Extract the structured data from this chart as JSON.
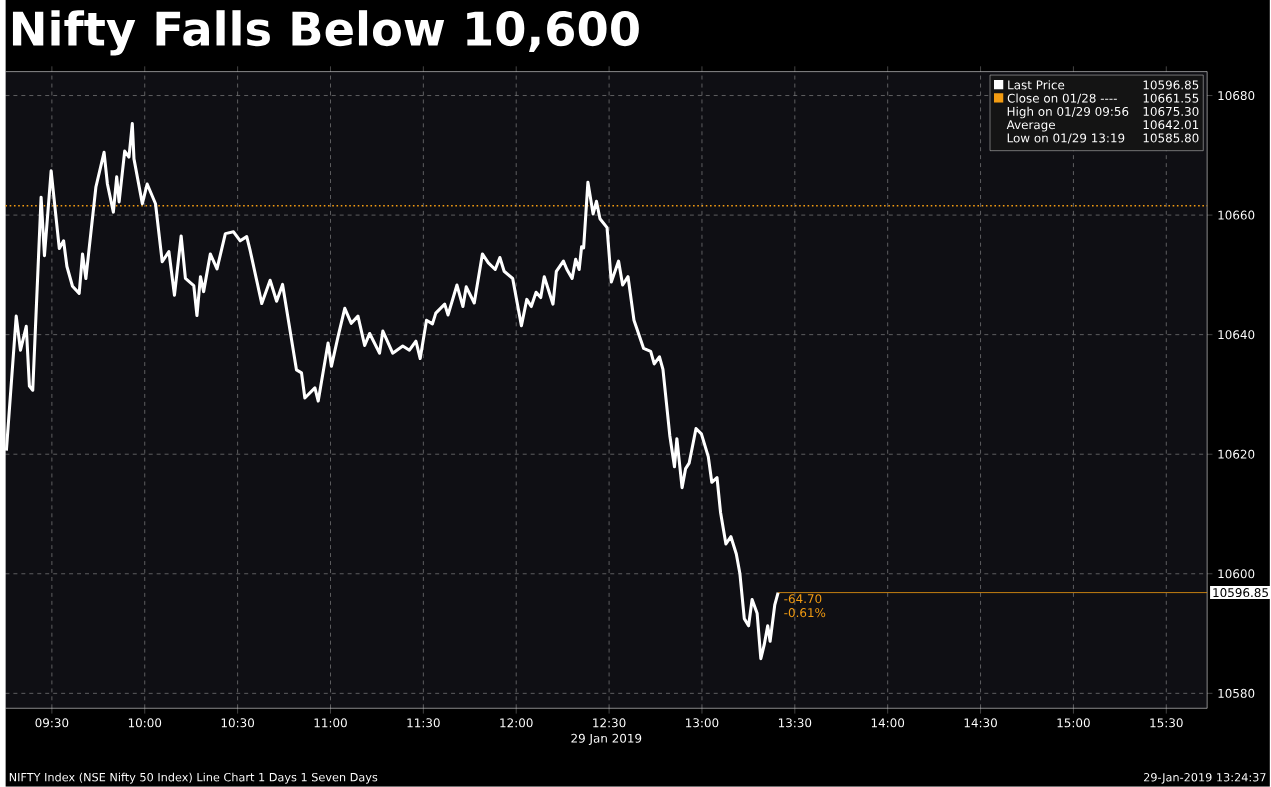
{
  "chart_data": {
    "type": "line",
    "title": "Nifty Falls Below 10,600",
    "xlabel": "29 Jan 2019",
    "x": [
      9.255,
      9.308,
      9.331,
      9.362,
      9.379,
      9.397,
      9.442,
      9.46,
      9.496,
      9.54,
      9.563,
      9.581,
      9.611,
      9.647,
      9.665,
      9.683,
      9.737,
      9.781,
      9.799,
      9.831,
      9.849,
      9.862,
      9.892,
      9.915,
      9.933,
      9.942,
      9.987,
      10.013,
      10.058,
      10.094,
      10.13,
      10.16,
      10.196,
      10.219,
      10.264,
      10.281,
      10.3,
      10.317,
      10.353,
      10.389,
      10.434,
      10.478,
      10.514,
      10.549,
      10.568,
      10.63,
      10.675,
      10.71,
      10.742,
      10.817,
      10.844,
      10.862,
      10.916,
      10.934,
      10.987,
      11.005,
      11.041,
      11.077,
      11.112,
      11.148,
      11.184,
      11.211,
      11.264,
      11.282,
      11.335,
      11.389,
      11.425,
      11.46,
      11.483,
      11.517,
      11.549,
      11.567,
      11.615,
      11.633,
      11.681,
      11.713,
      11.731,
      11.774,
      11.818,
      11.85,
      11.887,
      11.912,
      11.935,
      11.981,
      12.028,
      12.057,
      12.081,
      12.107,
      12.132,
      12.151,
      12.198,
      12.216,
      12.254,
      12.273,
      12.301,
      12.32,
      12.339,
      12.352,
      12.363,
      12.386,
      12.414,
      12.432,
      12.451,
      12.489,
      12.512,
      12.551,
      12.573,
      12.602,
      12.634,
      12.686,
      12.724,
      12.743,
      12.771,
      12.79,
      12.827,
      12.852,
      12.865,
      12.893,
      12.912,
      12.931,
      12.968,
      12.997,
      13.034,
      13.053,
      13.081,
      13.1,
      13.129,
      13.156,
      13.185,
      13.204,
      13.228,
      13.251,
      13.27,
      13.297,
      13.317,
      13.335,
      13.354,
      13.367,
      13.392,
      13.41
    ],
    "series": [
      {
        "name": "Last Price",
        "color": "#ffffff",
        "values": [
          10620.6,
          10643.1,
          10637.4,
          10641.4,
          10631.4,
          10630.7,
          10663.0,
          10653.2,
          10667.4,
          10654.4,
          10655.7,
          10651.4,
          10648.1,
          10646.9,
          10653.5,
          10649.4,
          10664.7,
          10670.5,
          10665.2,
          10660.5,
          10666.4,
          10662.2,
          10670.7,
          10669.7,
          10675.3,
          10669.4,
          10661.9,
          10665.2,
          10661.9,
          10652.2,
          10653.9,
          10646.6,
          10656.5,
          10649.4,
          10648.2,
          10643.2,
          10649.7,
          10647.2,
          10653.5,
          10651.0,
          10656.9,
          10657.2,
          10655.7,
          10656.4,
          10654.0,
          10645.2,
          10649.1,
          10645.6,
          10648.4,
          10634.1,
          10633.6,
          10629.4,
          10631.1,
          10628.9,
          10638.6,
          10634.7,
          10639.7,
          10644.4,
          10641.9,
          10643.1,
          10638.2,
          10640.2,
          10636.9,
          10640.6,
          10636.9,
          10638.1,
          10637.4,
          10638.9,
          10636.0,
          10642.4,
          10641.8,
          10643.6,
          10645.1,
          10643.3,
          10648.3,
          10644.7,
          10648.0,
          10645.3,
          10653.5,
          10652.0,
          10650.9,
          10652.9,
          10650.6,
          10649.4,
          10641.5,
          10645.9,
          10644.7,
          10647.1,
          10646.2,
          10649.7,
          10645.1,
          10650.6,
          10652.3,
          10650.9,
          10649.4,
          10652.6,
          10650.9,
          10654.7,
          10654.5,
          10665.5,
          10660.2,
          10662.3,
          10659.4,
          10657.9,
          10648.8,
          10652.3,
          10648.3,
          10649.7,
          10642.4,
          10637.7,
          10637.2,
          10635.1,
          10636.3,
          10634.2,
          10623.1,
          10617.9,
          10622.6,
          10614.4,
          10617.6,
          10618.5,
          10624.3,
          10623.4,
          10619.6,
          10615.3,
          10616.1,
          10610.3,
          10605.0,
          10606.2,
          10603.3,
          10600.1,
          10592.5,
          10591.3,
          10595.7,
          10593.4,
          10585.8,
          10588.1,
          10591.3,
          10588.7,
          10594.8,
          10596.85
        ]
      }
    ],
    "xlim": [
      9.25,
      15.72
    ],
    "ylim": [
      10577.5,
      10684
    ],
    "xticks": [
      {
        "value": 9.5,
        "label": "09:30"
      },
      {
        "value": 10,
        "label": "10:00"
      },
      {
        "value": 10.5,
        "label": "10:30"
      },
      {
        "value": 11,
        "label": "11:00"
      },
      {
        "value": 11.5,
        "label": "11:30"
      },
      {
        "value": 12,
        "label": "12:00"
      },
      {
        "value": 12.5,
        "label": "12:30"
      },
      {
        "value": 13,
        "label": "13:00"
      },
      {
        "value": 13.5,
        "label": "13:30"
      },
      {
        "value": 14,
        "label": "14:00"
      },
      {
        "value": 14.5,
        "label": "14:30"
      },
      {
        "value": 15,
        "label": "15:00"
      },
      {
        "value": 15.5,
        "label": "15:30"
      }
    ],
    "yticks": [
      10580,
      10600,
      10620,
      10640,
      10660,
      10680
    ],
    "ref_lines": [
      {
        "axis": "y",
        "value": 10661.55,
        "label": "Close on 01/28 ----",
        "color": "#f39c12",
        "line_style": "dotted"
      },
      {
        "axis": "y",
        "value": 10596.85,
        "label": "10596.85",
        "color": "#f39c12",
        "line_style": "solid"
      }
    ],
    "annotations": [
      "10596.85",
      "10661.55",
      "High on 01/29 09:56",
      "10675.30",
      "Average",
      "10642.01",
      "Low on 01/29 13:19",
      "10585.80",
      {
        "text": "-64.70",
        "x": 13.41,
        "y": 10596.85
      },
      {
        "text": "-0.61%",
        "x": 13.41,
        "y": 10596.85
      },
      "NIFTY Index (NSE Nifty 50 Index) Line Chart 1 Days 1 Seven Days",
      "29-Jan-2019 13:24:37"
    ],
    "grid": true,
    "legend": "top right"
  }
}
